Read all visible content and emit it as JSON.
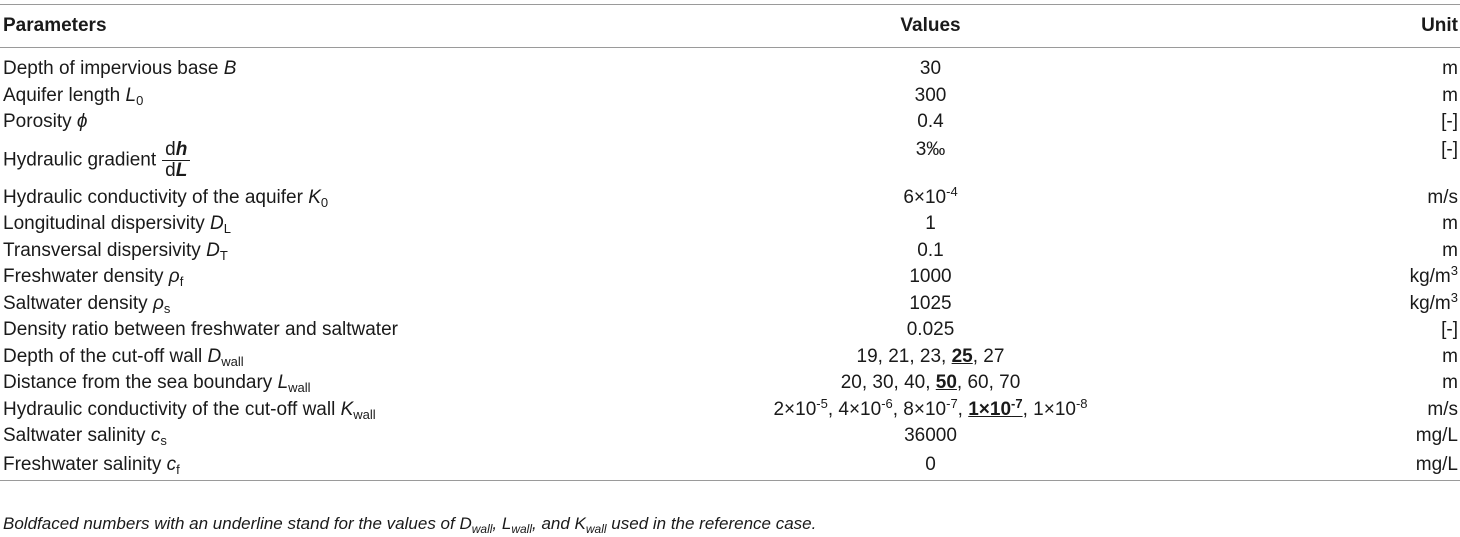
{
  "header": {
    "parameters": "Parameters",
    "values": "Values",
    "unit": "Unit"
  },
  "rows": [
    {
      "label": "Depth of impervious base",
      "sym": "B",
      "value": "30",
      "unit": "m"
    },
    {
      "label": "Aquifer length",
      "sym": "L",
      "sub": "0",
      "value": "300",
      "unit": "m"
    },
    {
      "label": "Porosity",
      "sym": "ϕ",
      "value": "0.4",
      "unit": "[-]"
    },
    {
      "label": "Hydraulic gradient",
      "frac_num": "dh",
      "frac_den": "dL",
      "value": "3‰",
      "unit": "[-]"
    },
    {
      "label": "Hydraulic conductivity of the aquifer",
      "sym": "K",
      "sub": "0",
      "value_base": "6×10",
      "value_exp": "-4",
      "unit": "m/s"
    },
    {
      "label": "Longitudinal dispersivity",
      "sym": "D",
      "sub": "L",
      "value": "1",
      "unit": "m"
    },
    {
      "label": "Transversal dispersivity",
      "sym": "D",
      "sub": "T",
      "value": "0.1",
      "unit": "m"
    },
    {
      "label": "Freshwater density",
      "sym": "ρ",
      "sub": "f",
      "value": "1000",
      "unit": "kg/m",
      "unit_sup": "3"
    },
    {
      "label": "Saltwater density",
      "sym": "ρ",
      "sub": "s",
      "value": "1025",
      "unit": "kg/m",
      "unit_sup": "3"
    },
    {
      "label": "Density ratio between freshwater and saltwater",
      "value": "0.025",
      "unit": "[-]"
    },
    {
      "label": "Depth of the cut-off wall",
      "sym": "D",
      "sub": "wall",
      "value_pre": "19, 21, 23, ",
      "value_ref": "25",
      "value_post": ", 27",
      "unit": "m"
    },
    {
      "label": "Distance from the sea boundary",
      "sym": "L",
      "sub": "wall",
      "value_pre": "20, 30, 40, ",
      "value_ref": "50",
      "value_post": ", 60, 70",
      "unit": "m"
    },
    {
      "label": "Hydraulic conductivity of the cut-off wall",
      "sym": "K",
      "sub": "wall",
      "unit": "m/s",
      "values": [
        "2×10",
        "-5",
        ", 4×10",
        "-6",
        ", 8×10",
        "-7",
        ", ",
        "1×10",
        "-7",
        ", 1×10",
        "-8"
      ]
    },
    {
      "label": "Saltwater salinity",
      "sym": "c",
      "sub": "s",
      "value": "36000",
      "unit": "mg/L"
    },
    {
      "label": "Freshwater salinity",
      "sym": "c",
      "sub": "f",
      "value": "0",
      "unit": "mg/L"
    }
  ],
  "footnote": {
    "prefix": "Boldfaced numbers with an underline stand for the values of ",
    "d": "D",
    "d_sub": "wall",
    "sep1": ", ",
    "l": "L",
    "l_sub": "wall",
    "sep2": ", and ",
    "k": "K",
    "k_sub": "wall",
    "suffix": " used in the reference case."
  }
}
